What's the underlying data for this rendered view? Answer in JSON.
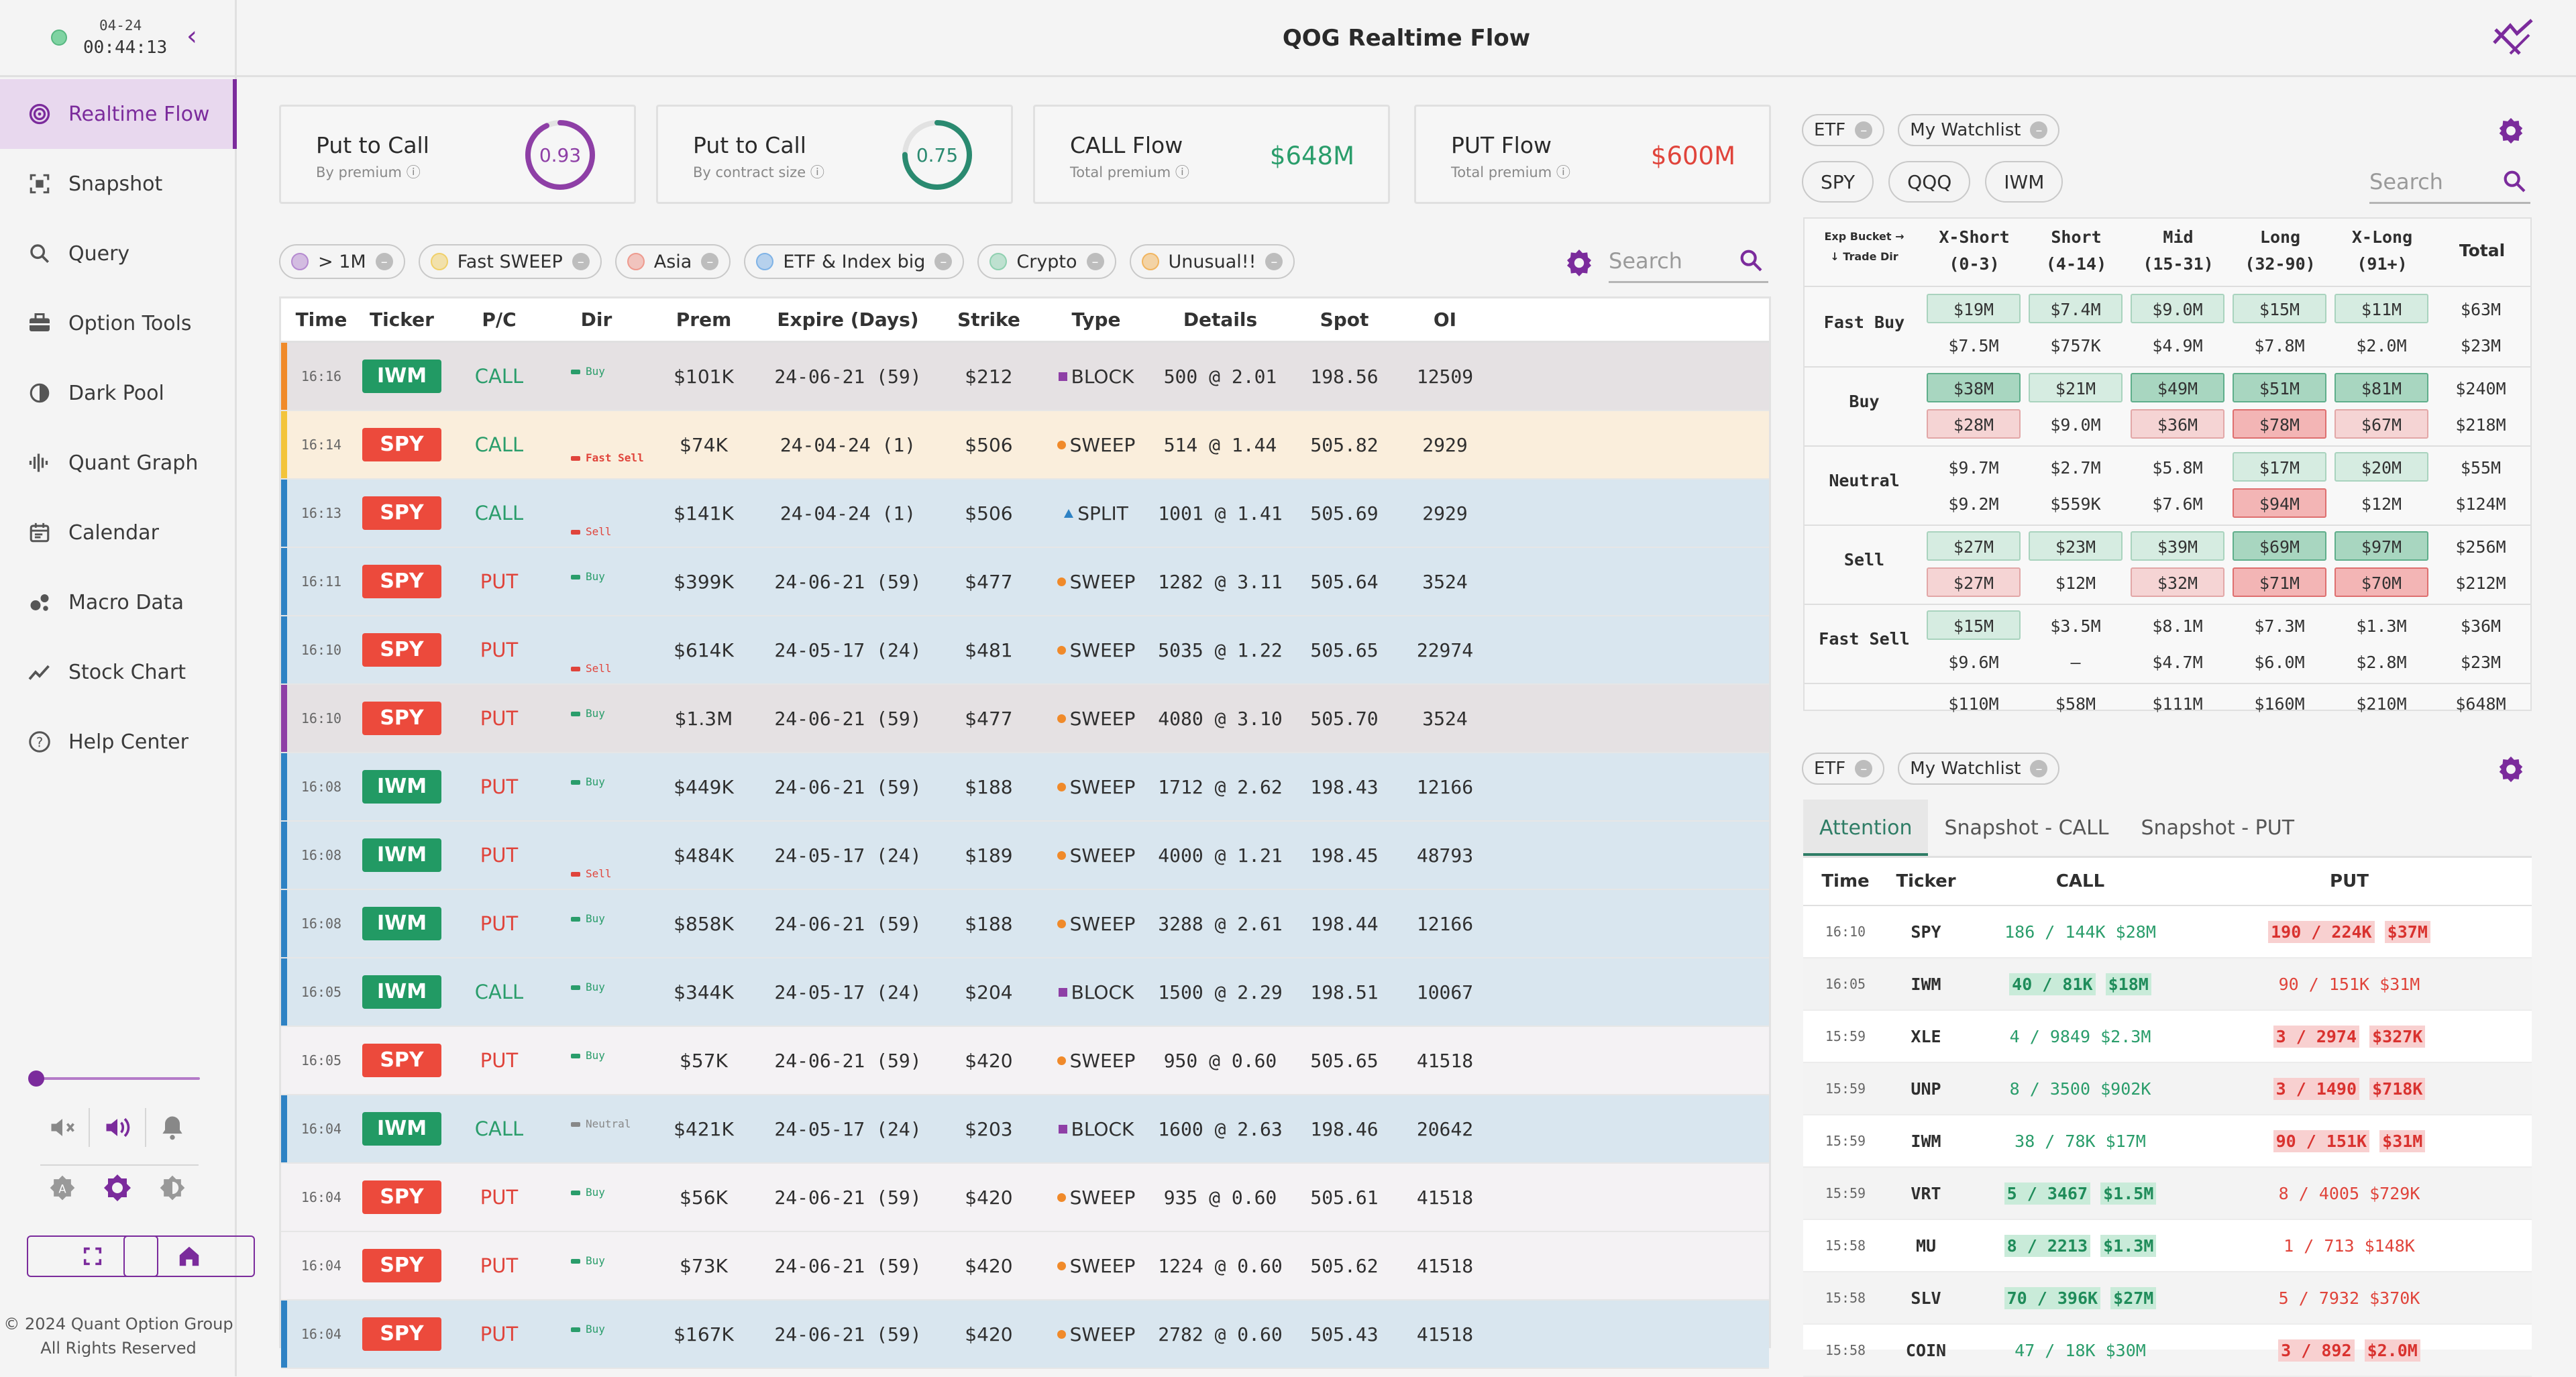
{
  "app": {
    "title": "QOG Realtime Flow"
  },
  "clock": {
    "date": "04-24",
    "time": "00:44:13"
  },
  "nav": [
    {
      "label": "Realtime Flow",
      "icon": "realtime-flow-icon"
    },
    {
      "label": "Snapshot",
      "icon": "snapshot-icon"
    },
    {
      "label": "Query",
      "icon": "search-icon"
    },
    {
      "label": "Option Tools",
      "icon": "toolbox-icon"
    },
    {
      "label": "Dark Pool",
      "icon": "dark-pool-icon"
    },
    {
      "label": "Quant Graph",
      "icon": "quant-graph-icon"
    },
    {
      "label": "Calendar",
      "icon": "calendar-icon"
    },
    {
      "label": "Macro Data",
      "icon": "macro-data-icon"
    },
    {
      "label": "Stock Chart",
      "icon": "stock-chart-icon"
    },
    {
      "label": "Help Center",
      "icon": "help-icon"
    }
  ],
  "footer": {
    "copyright_line1": "© 2024 Quant Option Group",
    "copyright_line2": "All Rights Reserved"
  },
  "cards": {
    "ptc_premium": {
      "title": "Put to Call",
      "sub": "By premium",
      "value": "0.93"
    },
    "ptc_contract": {
      "title": "Put to Call",
      "sub": "By contract size",
      "value": "0.75"
    },
    "call_flow": {
      "title": "CALL Flow",
      "sub": "Total premium",
      "value": "$648M"
    },
    "put_flow": {
      "title": "PUT Flow",
      "sub": "Total premium",
      "value": "$600M"
    }
  },
  "filters": [
    {
      "label": "> 1M",
      "color": "#b58ad0"
    },
    {
      "label": "Fast SWEEP",
      "color": "#f0d06a"
    },
    {
      "label": "Asia",
      "color": "#ee9a8e"
    },
    {
      "label": "ETF & Index big",
      "color": "#7fb3e6"
    },
    {
      "label": "Crypto",
      "color": "#8fd0b0"
    },
    {
      "label": "Unusual!!",
      "color": "#f1b560"
    }
  ],
  "search": {
    "placeholder": "Search"
  },
  "flow": {
    "headers": [
      "Time",
      "Ticker",
      "P/C",
      "Dir",
      "Prem",
      "Expire (Days)",
      "Strike",
      "Type",
      "Details",
      "Spot",
      "OI"
    ],
    "rows": [
      {
        "time": "16:16",
        "ticker": "IWM",
        "pc": "CALL",
        "dir": "Buy",
        "prem": "$101K",
        "expire": "24-06-21 (59)",
        "strike": "$212",
        "type": "BLOCK",
        "details": "500 @ 2.01",
        "spot": "198.56",
        "oi": "12509",
        "bg": "#e5e1e3",
        "bar": "#f08a2a"
      },
      {
        "time": "16:14",
        "ticker": "SPY",
        "pc": "CALL",
        "dir": "Fast Sell",
        "prem": "$74K",
        "expire": "24-04-24 (1)",
        "strike": "$506",
        "type": "SWEEP",
        "details": "514 @ 1.44",
        "spot": "505.82",
        "oi": "2929",
        "bg": "#faeedc",
        "bar": "#f3c43b"
      },
      {
        "time": "16:13",
        "ticker": "SPY",
        "pc": "CALL",
        "dir": "Sell",
        "prem": "$141K",
        "expire": "24-04-24 (1)",
        "strike": "$506",
        "type": "SPLIT",
        "details": "1001 @ 1.41",
        "spot": "505.69",
        "oi": "2929",
        "bg": "#d9e6ef",
        "bar": "#2e82c4"
      },
      {
        "time": "16:11",
        "ticker": "SPY",
        "pc": "PUT",
        "dir": "Buy",
        "prem": "$399K",
        "expire": "24-06-21 (59)",
        "strike": "$477",
        "type": "SWEEP",
        "details": "1282 @ 3.11",
        "spot": "505.64",
        "oi": "3524",
        "bg": "#d9e6ef",
        "bar": "#2e82c4"
      },
      {
        "time": "16:10",
        "ticker": "SPY",
        "pc": "PUT",
        "dir": "Sell",
        "prem": "$614K",
        "expire": "24-05-17 (24)",
        "strike": "$481",
        "type": "SWEEP",
        "details": "5035 @ 1.22",
        "spot": "505.65",
        "oi": "22974",
        "bg": "#d9e6ef",
        "bar": "#2e82c4"
      },
      {
        "time": "16:10",
        "ticker": "SPY",
        "pc": "PUT",
        "dir": "Buy",
        "prem": "$1.3M",
        "expire": "24-06-21 (59)",
        "strike": "$477",
        "type": "SWEEP",
        "details": "4080 @ 3.10",
        "spot": "505.70",
        "oi": "3524",
        "bg": "#e5e1e3",
        "bar": "#8e3fa6"
      },
      {
        "time": "16:08",
        "ticker": "IWM",
        "pc": "PUT",
        "dir": "Buy",
        "prem": "$449K",
        "expire": "24-06-21 (59)",
        "strike": "$188",
        "type": "SWEEP",
        "details": "1712 @ 2.62",
        "spot": "198.43",
        "oi": "12166",
        "bg": "#d9e6ef",
        "bar": "#2e82c4"
      },
      {
        "time": "16:08",
        "ticker": "IWM",
        "pc": "PUT",
        "dir": "Sell",
        "prem": "$484K",
        "expire": "24-05-17 (24)",
        "strike": "$189",
        "type": "SWEEP",
        "details": "4000 @ 1.21",
        "spot": "198.45",
        "oi": "48793",
        "bg": "#d9e6ef",
        "bar": "#2e82c4"
      },
      {
        "time": "16:08",
        "ticker": "IWM",
        "pc": "PUT",
        "dir": "Buy",
        "prem": "$858K",
        "expire": "24-06-21 (59)",
        "strike": "$188",
        "type": "SWEEP",
        "details": "3288 @ 2.61",
        "spot": "198.44",
        "oi": "12166",
        "bg": "#d9e6ef",
        "bar": "#2e82c4"
      },
      {
        "time": "16:05",
        "ticker": "IWM",
        "pc": "CALL",
        "dir": "Buy",
        "prem": "$344K",
        "expire": "24-05-17 (24)",
        "strike": "$204",
        "type": "BLOCK",
        "details": "1500 @ 2.29",
        "spot": "198.51",
        "oi": "10067",
        "bg": "#d9e6ef",
        "bar": "#2e82c4"
      },
      {
        "time": "16:05",
        "ticker": "SPY",
        "pc": "PUT",
        "dir": "Buy",
        "prem": "$57K",
        "expire": "24-06-21 (59)",
        "strike": "$420",
        "type": "SWEEP",
        "details": "950 @ 0.60",
        "spot": "505.65",
        "oi": "41518",
        "bg": "#f4f2f4",
        "bar": ""
      },
      {
        "time": "16:04",
        "ticker": "IWM",
        "pc": "CALL",
        "dir": "Neutral",
        "prem": "$421K",
        "expire": "24-05-17 (24)",
        "strike": "$203",
        "type": "BLOCK",
        "details": "1600 @ 2.63",
        "spot": "198.46",
        "oi": "20642",
        "bg": "#d9e6ef",
        "bar": "#2e82c4"
      },
      {
        "time": "16:04",
        "ticker": "SPY",
        "pc": "PUT",
        "dir": "Buy",
        "prem": "$56K",
        "expire": "24-06-21 (59)",
        "strike": "$420",
        "type": "SWEEP",
        "details": "935 @ 0.60",
        "spot": "505.61",
        "oi": "41518",
        "bg": "#f4f2f4",
        "bar": ""
      },
      {
        "time": "16:04",
        "ticker": "SPY",
        "pc": "PUT",
        "dir": "Buy",
        "prem": "$73K",
        "expire": "24-06-21 (59)",
        "strike": "$420",
        "type": "SWEEP",
        "details": "1224 @ 0.60",
        "spot": "505.62",
        "oi": "41518",
        "bg": "#f4f2f4",
        "bar": ""
      },
      {
        "time": "16:04",
        "ticker": "SPY",
        "pc": "PUT",
        "dir": "Buy",
        "prem": "$167K",
        "expire": "24-06-21 (59)",
        "strike": "$420",
        "type": "SWEEP",
        "details": "2782 @ 0.60",
        "spot": "505.43",
        "oi": "41518",
        "bg": "#d9e6ef",
        "bar": "#2e82c4"
      }
    ]
  },
  "watch": {
    "tags": [
      "ETF",
      "My Watchlist"
    ],
    "tickers": [
      "SPY",
      "QQQ",
      "IWM"
    ],
    "search_placeholder": "Search"
  },
  "heatmap": {
    "corner_line1": "Exp Bucket →",
    "corner_line2": "↓ Trade Dir",
    "columns": [
      {
        "name": "X-Short",
        "range": "(0-3)"
      },
      {
        "name": "Short",
        "range": "(4-14)"
      },
      {
        "name": "Mid",
        "range": "(15-31)"
      },
      {
        "name": "Long",
        "range": "(32-90)"
      },
      {
        "name": "X-Long",
        "range": "(91+)"
      }
    ],
    "total_label": "Total",
    "rows": [
      {
        "label": "Fast Buy",
        "top": [
          [
            "$19M",
            "g1"
          ],
          [
            "$7.4M",
            "g1"
          ],
          [
            "$9.0M",
            "g1"
          ],
          [
            "$15M",
            "g1"
          ],
          [
            "$11M",
            "g1"
          ]
        ],
        "top_total": "$63M",
        "bottom": [
          [
            "$7.5M",
            "n"
          ],
          [
            "$757K",
            "n"
          ],
          [
            "$4.9M",
            "n"
          ],
          [
            "$7.8M",
            "n"
          ],
          [
            "$2.0M",
            "n"
          ]
        ],
        "bottom_total": "$23M"
      },
      {
        "label": "Buy",
        "top": [
          [
            "$38M",
            "g2"
          ],
          [
            "$21M",
            "g1"
          ],
          [
            "$49M",
            "g2"
          ],
          [
            "$51M",
            "g2"
          ],
          [
            "$81M",
            "g2"
          ]
        ],
        "top_total": "$240M",
        "bottom": [
          [
            "$28M",
            "r1"
          ],
          [
            "$9.0M",
            "n"
          ],
          [
            "$36M",
            "r1"
          ],
          [
            "$78M",
            "r2"
          ],
          [
            "$67M",
            "r1"
          ]
        ],
        "bottom_total": "$218M"
      },
      {
        "label": "Neutral",
        "top": [
          [
            "$9.7M",
            "n"
          ],
          [
            "$2.7M",
            "n"
          ],
          [
            "$5.8M",
            "n"
          ],
          [
            "$17M",
            "g1"
          ],
          [
            "$20M",
            "g1"
          ]
        ],
        "top_total": "$55M",
        "bottom": [
          [
            "$9.2M",
            "n"
          ],
          [
            "$559K",
            "n"
          ],
          [
            "$7.6M",
            "n"
          ],
          [
            "$94M",
            "r2"
          ],
          [
            "$12M",
            "n"
          ]
        ],
        "bottom_total": "$124M"
      },
      {
        "label": "Sell",
        "top": [
          [
            "$27M",
            "g1"
          ],
          [
            "$23M",
            "g1"
          ],
          [
            "$39M",
            "g1"
          ],
          [
            "$69M",
            "g2"
          ],
          [
            "$97M",
            "g2"
          ]
        ],
        "top_total": "$256M",
        "bottom": [
          [
            "$27M",
            "r1"
          ],
          [
            "$12M",
            "n"
          ],
          [
            "$32M",
            "r1"
          ],
          [
            "$71M",
            "r2"
          ],
          [
            "$70M",
            "r2"
          ]
        ],
        "bottom_total": "$212M"
      },
      {
        "label": "Fast Sell",
        "top": [
          [
            "$15M",
            "g1"
          ],
          [
            "$3.5M",
            "n"
          ],
          [
            "$8.1M",
            "n"
          ],
          [
            "$7.3M",
            "n"
          ],
          [
            "$1.3M",
            "n"
          ]
        ],
        "top_total": "$36M",
        "bottom": [
          [
            "$9.6M",
            "n"
          ],
          [
            "–",
            "n"
          ],
          [
            "$4.7M",
            "n"
          ],
          [
            "$6.0M",
            "n"
          ],
          [
            "$2.8M",
            "n"
          ]
        ],
        "bottom_total": "$23M"
      }
    ],
    "totals_row": [
      "$110M",
      "$58M",
      "$111M",
      "$160M",
      "$210M",
      "$648M"
    ]
  },
  "attention": {
    "tabs": [
      "Attention",
      "Snapshot - CALL",
      "Snapshot - PUT"
    ],
    "headers": [
      "Time",
      "Ticker",
      "CALL",
      "PUT"
    ],
    "rows": [
      {
        "time": "16:10",
        "ticker": "SPY",
        "call": "186 / 144K",
        "callv": "$28M",
        "put": "190 / 224K",
        "putv": "$37M",
        "hl": "put"
      },
      {
        "time": "16:05",
        "ticker": "IWM",
        "call": "40 / 81K",
        "callv": "$18M",
        "put": "90 / 151K",
        "putv": "$31M",
        "hl": "call"
      },
      {
        "time": "15:59",
        "ticker": "XLE",
        "call": "4 / 9849",
        "callv": "$2.3M",
        "put": "3 / 2974",
        "putv": "$327K",
        "hl": "put"
      },
      {
        "time": "15:59",
        "ticker": "UNP",
        "call": "8 / 3500",
        "callv": "$902K",
        "put": "3 / 1490",
        "putv": "$718K",
        "hl": "put"
      },
      {
        "time": "15:59",
        "ticker": "IWM",
        "call": "38 / 78K",
        "callv": "$17M",
        "put": "90 / 151K",
        "putv": "$31M",
        "hl": "put"
      },
      {
        "time": "15:59",
        "ticker": "VRT",
        "call": "5 / 3467",
        "callv": "$1.5M",
        "put": "8 / 4005",
        "putv": "$729K",
        "hl": "call"
      },
      {
        "time": "15:58",
        "ticker": "MU",
        "call": "8 / 2213",
        "callv": "$1.3M",
        "put": "1 / 713",
        "putv": "$148K",
        "hl": "call"
      },
      {
        "time": "15:58",
        "ticker": "SLV",
        "call": "70 / 396K",
        "callv": "$27M",
        "put": "5 / 7932",
        "putv": "$370K",
        "hl": "call"
      },
      {
        "time": "15:58",
        "ticker": "COIN",
        "call": "47 / 18K",
        "callv": "$30M",
        "put": "3 / 892",
        "putv": "$2.0M",
        "hl": "put"
      }
    ]
  },
  "colors": {
    "accent": "#7b2b9c",
    "call_green": "#2a9d6b",
    "put_red": "#e0443b",
    "iwm_badge": "#229a64",
    "spy_badge": "#ec4a3c"
  }
}
